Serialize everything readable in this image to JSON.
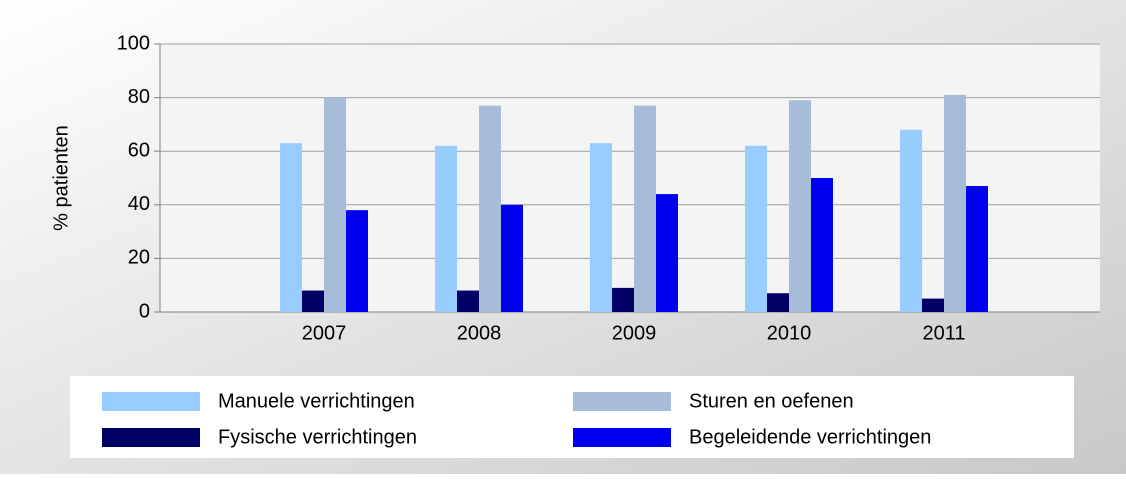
{
  "chart_data": {
    "type": "bar",
    "y_label": "% patienten",
    "categories": [
      "2007",
      "2008",
      "2009",
      "2010",
      "2011"
    ],
    "series": [
      {
        "name": "Manuele verrichtingen",
        "color": "#99ccff",
        "values": [
          63,
          62,
          63,
          62,
          68
        ]
      },
      {
        "name": "Fysische verrichtingen",
        "color": "#000066",
        "values": [
          8,
          8,
          9,
          7,
          5
        ]
      },
      {
        "name": "Sturen en oefenen",
        "color": "#a6bcd8",
        "values": [
          80,
          77,
          77,
          79,
          81
        ]
      },
      {
        "name": "Begeleidende verrichtingen",
        "color": "#0000ee",
        "values": [
          38,
          40,
          44,
          50,
          47
        ]
      }
    ],
    "ylim": [
      0,
      100
    ],
    "yticks": [
      0,
      20,
      40,
      60,
      80,
      100
    ],
    "grid": true,
    "legend": "bottom"
  }
}
